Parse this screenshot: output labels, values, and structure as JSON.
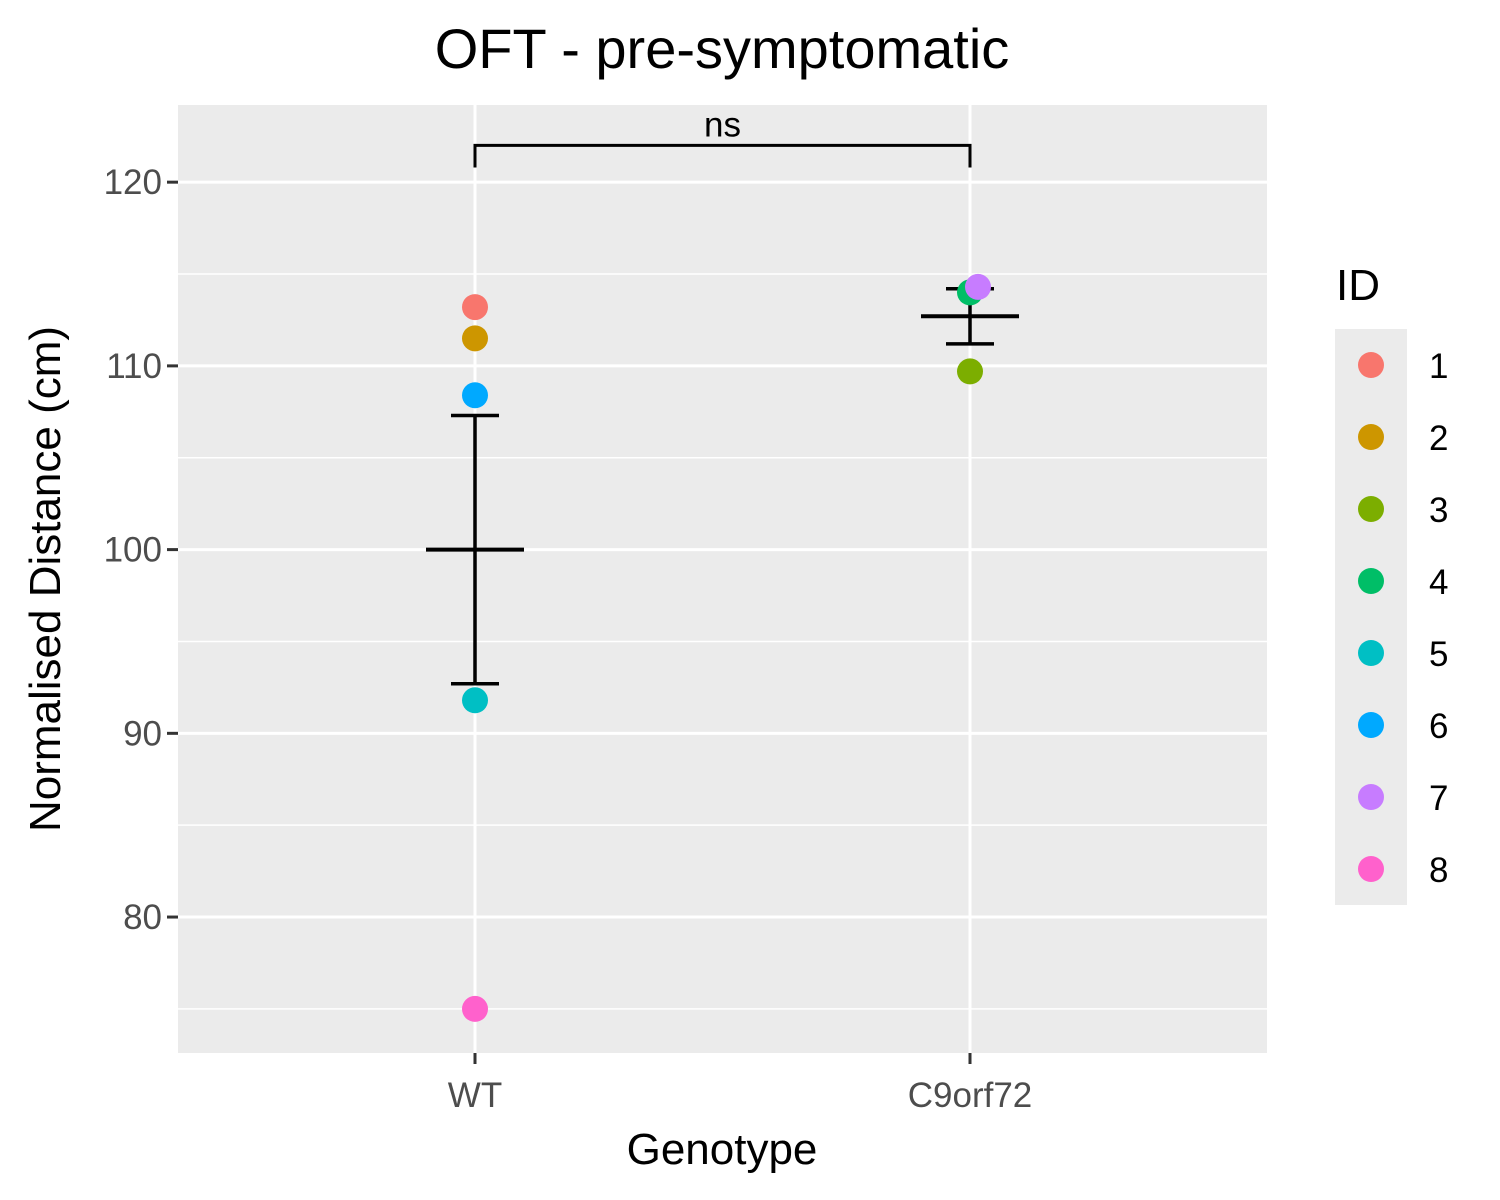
{
  "chart_data": {
    "type": "scatter",
    "title": "OFT - pre-symptomatic",
    "xlabel": "Genotype",
    "ylabel": "Normalised Distance (cm)",
    "categories": [
      "WT",
      "C9orf72"
    ],
    "ylim": [
      72.6,
      124.2
    ],
    "y_ticks": [
      80,
      90,
      100,
      110,
      120
    ],
    "grid": true,
    "legend": {
      "title": "ID",
      "position": "right",
      "entries": [
        {
          "label": "1",
          "color": "#F8766D"
        },
        {
          "label": "2",
          "color": "#CD9600"
        },
        {
          "label": "3",
          "color": "#7CAE00"
        },
        {
          "label": "4",
          "color": "#00BE67"
        },
        {
          "label": "5",
          "color": "#00BFC4"
        },
        {
          "label": "6",
          "color": "#00A9FF"
        },
        {
          "label": "7",
          "color": "#C77CFF"
        },
        {
          "label": "8",
          "color": "#FF61CC"
        }
      ]
    },
    "points": [
      {
        "category": "WT",
        "id": "1",
        "y": 113.2
      },
      {
        "category": "WT",
        "id": "2",
        "y": 111.5
      },
      {
        "category": "WT",
        "id": "6",
        "y": 108.4
      },
      {
        "category": "WT",
        "id": "5",
        "y": 91.8
      },
      {
        "category": "WT",
        "id": "8",
        "y": 75.0
      },
      {
        "category": "C9orf72",
        "id": "4",
        "y": 114.0
      },
      {
        "category": "C9orf72",
        "id": "7",
        "y": 114.3
      },
      {
        "category": "C9orf72",
        "id": "3",
        "y": 109.7
      }
    ],
    "summary": [
      {
        "category": "WT",
        "mean": 100.0,
        "lower": 92.7,
        "upper": 107.3
      },
      {
        "category": "C9orf72",
        "mean": 112.7,
        "lower": 111.2,
        "upper": 114.2
      }
    ],
    "significance": {
      "from": "WT",
      "to": "C9orf72",
      "label": "ns",
      "y": 122.0,
      "tip_y": 120.8
    }
  }
}
